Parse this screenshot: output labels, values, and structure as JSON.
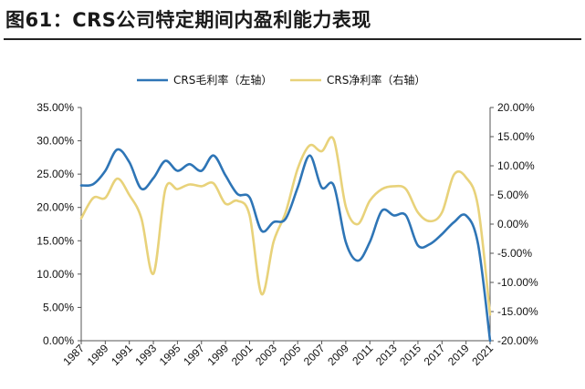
{
  "figure": {
    "title": "图61：CRS公司特定期间内盈利能力表现"
  },
  "chart_data": {
    "type": "line",
    "title": "",
    "x": [
      1987,
      1988,
      1989,
      1990,
      1991,
      1992,
      1993,
      1994,
      1995,
      1996,
      1997,
      1998,
      1999,
      2000,
      2001,
      2002,
      2003,
      2004,
      2005,
      2006,
      2007,
      2008,
      2009,
      2010,
      2011,
      2012,
      2013,
      2014,
      2015,
      2016,
      2017,
      2018,
      2019,
      2020,
      2021
    ],
    "x_tick_labels": [
      "1987",
      "1989",
      "1991",
      "1993",
      "1995",
      "1997",
      "1999",
      "2001",
      "2003",
      "2005",
      "2007",
      "2009",
      "2011",
      "2013",
      "2015",
      "2017",
      "2019",
      "2021"
    ],
    "left_axis": {
      "ylim": [
        0,
        35
      ],
      "tick_labels": [
        "0.00%",
        "5.00%",
        "10.00%",
        "15.00%",
        "20.00%",
        "25.00%",
        "30.00%",
        "35.00%"
      ]
    },
    "right_axis": {
      "ylim": [
        -20,
        20
      ],
      "tick_labels": [
        "-20.00%",
        "-15.00%",
        "-10.00%",
        "-5.00%",
        "0.00%",
        "5.00%",
        "10.00%",
        "15.00%",
        "20.00%"
      ]
    },
    "grid": false,
    "legend_position": "top-center",
    "series": [
      {
        "name": "CRS毛利率（左轴）",
        "axis": "left",
        "color": "#2e75b6",
        "values": [
          23.3,
          23.5,
          25.5,
          28.7,
          26.8,
          22.8,
          24.4,
          27.0,
          25.5,
          26.5,
          25.5,
          27.8,
          24.8,
          22.0,
          21.5,
          16.5,
          17.8,
          18.3,
          23.0,
          27.8,
          23.0,
          23.3,
          14.8,
          12.0,
          14.8,
          19.5,
          18.8,
          18.8,
          14.3,
          14.5,
          16.0,
          17.8,
          18.8,
          14.5,
          0.0
        ]
      },
      {
        "name": "CRS净利率（右轴）",
        "axis": "right",
        "color": "#e8d27a",
        "values": [
          1.0,
          4.5,
          4.5,
          7.8,
          5.0,
          1.0,
          -8.5,
          6.0,
          6.0,
          6.8,
          6.5,
          7.0,
          3.5,
          4.0,
          1.5,
          -12.0,
          -3.0,
          2.0,
          9.5,
          13.5,
          12.5,
          14.5,
          3.0,
          0.0,
          4.0,
          6.0,
          6.5,
          6.0,
          2.0,
          0.5,
          2.0,
          8.5,
          8.0,
          3.0,
          -15.5
        ]
      }
    ]
  }
}
